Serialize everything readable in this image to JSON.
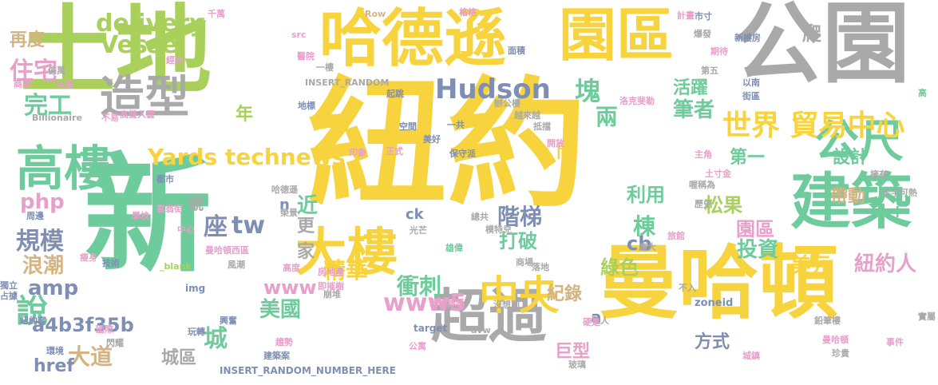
{
  "palette": [
    "#f7d33e",
    "#6ecb9c",
    "#a8d05a",
    "#a9a9a9",
    "#7f8fb3",
    "#d4b483",
    "#e7a0c9",
    "#f4a582"
  ],
  "words": [
    {
      "text": "紐約",
      "color": "#f7d33e"
    },
    {
      "text": "新",
      "color": "#6ecb9c"
    },
    {
      "text": "土地",
      "color": "#a8d05a"
    },
    {
      "text": "曼哈頓",
      "color": "#f7d33e"
    },
    {
      "text": "公園",
      "color": "#a9a9a9"
    },
    {
      "text": "哈德遜",
      "color": "#f7d33e"
    },
    {
      "text": "園區",
      "color": "#f7d33e"
    },
    {
      "text": "建築",
      "color": "#6ecb9c"
    },
    {
      "text": "超過",
      "color": "#a9a9a9"
    },
    {
      "text": "大樓",
      "color": "#f7d33e"
    },
    {
      "text": "高樓",
      "color": "#6ecb9c"
    },
    {
      "text": "造型",
      "color": "#a9a9a9"
    },
    {
      "text": "中央",
      "color": "#f7d33e"
    },
    {
      "text": "公尺",
      "color": "#6ecb9c"
    },
    {
      "text": "世界 貿易中心",
      "color": "#f7d33e"
    },
    {
      "text": "Hudson",
      "color": "#7f8fb3"
    },
    {
      "text": "Yards technews",
      "color": "#f7d33e"
    },
    {
      "text": "delivery",
      "color": "#a8d05a"
    },
    {
      "text": "Vessel",
      "color": "#a8d05a"
    },
    {
      "text": "完工",
      "color": "#6ecb9c"
    },
    {
      "text": "住宅",
      "color": "#e7a0c9"
    },
    {
      "text": "再度",
      "color": "#d4b483"
    },
    {
      "text": "php",
      "color": "#e7a0c9"
    },
    {
      "text": "規模",
      "color": "#7f8fb3"
    },
    {
      "text": "浪潮",
      "color": "#d4b483"
    },
    {
      "text": "amp",
      "color": "#7f8fb3"
    },
    {
      "text": "說",
      "color": "#6ecb9c"
    },
    {
      "text": "a4b3f35b",
      "color": "#7f8fb3"
    },
    {
      "text": "大道",
      "color": "#d4b483"
    },
    {
      "text": "href",
      "color": "#7f8fb3"
    },
    {
      "text": "城區",
      "color": "#a9a9a9"
    },
    {
      "text": "城",
      "color": "#6ecb9c"
    },
    {
      "text": "座",
      "color": "#7f8fb3"
    },
    {
      "text": "tw",
      "color": "#7f8fb3"
    },
    {
      "text": "www",
      "color": "#e7a0c9"
    },
    {
      "text": "www5",
      "color": "#e7a0c9"
    },
    {
      "text": "精華",
      "color": "#f7d33e"
    },
    {
      "text": "美國",
      "color": "#6ecb9c"
    },
    {
      "text": "衝刺",
      "color": "#6ecb9c"
    },
    {
      "text": "紀錄",
      "color": "#d4b483"
    },
    {
      "text": "巨型",
      "color": "#e7a0c9"
    },
    {
      "text": "階梯",
      "color": "#7f8fb3"
    },
    {
      "text": "打破",
      "color": "#6ecb9c"
    },
    {
      "text": "利用",
      "color": "#6ecb9c"
    },
    {
      "text": "棟",
      "color": "#6ecb9c"
    },
    {
      "text": "cb",
      "color": "#7f8fb3"
    },
    {
      "text": "綠色",
      "color": "#a8d05a"
    },
    {
      "text": "松果",
      "color": "#a8d05a"
    },
    {
      "text": "投資",
      "color": "#6ecb9c"
    },
    {
      "text": "園區",
      "color": "#e7a0c9"
    },
    {
      "text": "美元",
      "color": "#f7d33e"
    },
    {
      "text": "紐約人",
      "color": "#e7a0c9"
    },
    {
      "text": "設計",
      "color": "#6ecb9c"
    },
    {
      "text": "第一",
      "color": "#6ecb9c"
    },
    {
      "text": "帶動",
      "color": "#d4b483"
    },
    {
      "text": "筆者",
      "color": "#6ecb9c"
    },
    {
      "text": "活躍",
      "color": "#6ecb9c"
    },
    {
      "text": "塊",
      "color": "#6ecb9c"
    },
    {
      "text": "兩",
      "color": "#6ecb9c"
    },
    {
      "text": "間",
      "color": "#f7d33e"
    },
    {
      "text": "近",
      "color": "#6ecb9c"
    },
    {
      "text": "更",
      "color": "#a9a9a9"
    },
    {
      "text": "家",
      "color": "#a9a9a9"
    },
    {
      "text": "年",
      "color": "#a8d05a"
    },
    {
      "text": "ck",
      "color": "#7f8fb3"
    },
    {
      "text": "n",
      "color": "#7f8fb3"
    },
    {
      "text": "方式",
      "color": "#7f8fb3"
    },
    {
      "text": "爬",
      "color": "#a9a9a9"
    },
    {
      "text": "號",
      "color": "#a9a9a9"
    },
    {
      "text": "a",
      "color": "#7f8fb3"
    },
    {
      "text": "+",
      "color": "#6ecb9c"
    },
    {
      "text": "INSERT_RANDOM_NUMBER_HERE",
      "color": "#7f8fb3"
    },
    {
      "text": "INSERT_RANDOM",
      "color": "#a9a9a9"
    },
    {
      "text": "zoneid",
      "color": "#7f8fb3"
    },
    {
      "text": "Billionaire",
      "color": "#a9a9a9"
    },
    {
      "text": "Row",
      "color": "#d4b483"
    },
    {
      "text": "src",
      "color": "#e7a0c9"
    },
    {
      "text": "target",
      "color": "#7f8fb3"
    },
    {
      "text": "img",
      "color": "#7f8fb3"
    },
    {
      "text": "_blank",
      "color": "#a8d05a"
    },
    {
      "text": "avw",
      "color": "#a9a9a9"
    },
    {
      "text": "千萬",
      "color": "#e7a0c9"
    },
    {
      "text": "格格",
      "color": "#e7a0c9"
    },
    {
      "text": "市寸",
      "color": "#7f8fb3"
    },
    {
      "text": "爆發",
      "color": "#a9a9a9"
    },
    {
      "text": "期待",
      "color": "#e7a0c9"
    },
    {
      "text": "新樓房",
      "color": "#7f8fb3"
    },
    {
      "text": "面積",
      "color": "#7f8fb3"
    },
    {
      "text": "計畫",
      "color": "#e7a0c9"
    },
    {
      "text": "第五",
      "color": "#a9a9a9"
    },
    {
      "text": "以南",
      "color": "#7f8fb3"
    },
    {
      "text": "街區",
      "color": "#7f8fb3"
    },
    {
      "text": "高",
      "color": "#6ecb9c"
    },
    {
      "text": "商圈",
      "color": "#e7a0c9"
    },
    {
      "text": "億萬",
      "color": "#a9a9a9"
    },
    {
      "text": "大萬",
      "color": "#e7a0c9"
    },
    {
      "text": "高聳入雲",
      "color": "#e7a0c9"
    },
    {
      "text": "不易",
      "color": "#e7a0c9"
    },
    {
      "text": "經典",
      "color": "#e7a0c9"
    },
    {
      "text": "醫院",
      "color": "#e7a0c9"
    },
    {
      "text": "地標",
      "color": "#7f8fb3"
    },
    {
      "text": "起跳",
      "color": "#7f8fb3"
    },
    {
      "text": "一樓",
      "color": "#a9a9a9"
    },
    {
      "text": "辦公樓",
      "color": "#a9a9a9"
    },
    {
      "text": "越來越",
      "color": "#a9a9a9"
    },
    {
      "text": "抵擋",
      "color": "#a9a9a9"
    },
    {
      "text": "開放",
      "color": "#e7a0c9"
    },
    {
      "text": "空間",
      "color": "#7f8fb3"
    },
    {
      "text": "一共",
      "color": "#7f8fb3"
    },
    {
      "text": "美好",
      "color": "#7f8fb3"
    },
    {
      "text": "保守派",
      "color": "#7f8fb3"
    },
    {
      "text": "正式",
      "color": "#e7a0c9"
    },
    {
      "text": "印象",
      "color": "#e7a0c9"
    },
    {
      "text": "洛克斐勒",
      "color": "#e7a0c9"
    },
    {
      "text": "主角",
      "color": "#e7a0c9"
    },
    {
      "text": "土寸金",
      "color": "#e7a0c9"
    },
    {
      "text": "喔稱為",
      "color": "#a9a9a9"
    },
    {
      "text": "歷史",
      "color": "#a9a9a9"
    },
    {
      "text": "炙手可熱",
      "color": "#a9a9a9"
    },
    {
      "text": "擁有",
      "color": "#a9a9a9"
    },
    {
      "text": "都市",
      "color": "#7f8fb3"
    },
    {
      "text": "哈德遜",
      "color": "#a9a9a9"
    },
    {
      "text": "學校",
      "color": "#e7a0c9"
    },
    {
      "text": "中心",
      "color": "#e7a0c9"
    },
    {
      "text": "曼哈頓西區",
      "color": "#e7a0c9"
    },
    {
      "text": "榮景",
      "color": "#a9a9a9"
    },
    {
      "text": "光芒",
      "color": "#a9a9a9"
    },
    {
      "text": "總共",
      "color": "#a9a9a9"
    },
    {
      "text": "模特兒",
      "color": "#a9a9a9"
    },
    {
      "text": "雄偉",
      "color": "#6ecb9c"
    },
    {
      "text": "旅館",
      "color": "#e7a0c9"
    },
    {
      "text": "龐大",
      "color": "#a9a9a9"
    },
    {
      "text": "技術",
      "color": "#7f8fb3"
    },
    {
      "text": "瘦身",
      "color": "#e7a0c9"
    },
    {
      "text": "周邊",
      "color": "#7f8fb3"
    },
    {
      "text": "獨立",
      "color": "#7f8fb3"
    },
    {
      "text": "占據",
      "color": "#7f8fb3"
    },
    {
      "text": "紐約客",
      "color": "#7f8fb3"
    },
    {
      "text": "國際",
      "color": "#e7a0c9"
    },
    {
      "text": "環境",
      "color": "#7f8fb3"
    },
    {
      "text": "興奮",
      "color": "#7f8fb3"
    },
    {
      "text": "玩轉",
      "color": "#7f8fb3"
    },
    {
      "text": "風潮",
      "color": "#a9a9a9"
    },
    {
      "text": "高度",
      "color": "#e7a0c9"
    },
    {
      "text": "房地產",
      "color": "#e7a0c9"
    },
    {
      "text": "即摧樹",
      "color": "#e7a0c9"
    },
    {
      "text": "崩堆",
      "color": "#a9a9a9"
    },
    {
      "text": "藝術展區",
      "color": "#e7a0c9"
    },
    {
      "text": "趨勢",
      "color": "#e7a0c9"
    },
    {
      "text": "建築案",
      "color": "#7f8fb3"
    },
    {
      "text": "公寓",
      "color": "#e7a0c9"
    },
    {
      "text": "沒想到",
      "color": "#a9a9a9"
    },
    {
      "text": "商場",
      "color": "#a9a9a9"
    },
    {
      "text": "落地",
      "color": "#a9a9a9"
    },
    {
      "text": "玻璃",
      "color": "#a9a9a9"
    },
    {
      "text": "鉛筆樓",
      "color": "#a9a9a9"
    },
    {
      "text": "珍貴",
      "color": "#a9a9a9"
    },
    {
      "text": "城鎮",
      "color": "#e7a0c9"
    },
    {
      "text": "事件",
      "color": "#e7a0c9"
    },
    {
      "text": "實屬",
      "color": "#a9a9a9"
    },
    {
      "text": "不入",
      "color": "#a9a9a9"
    },
    {
      "text": "私人",
      "color": "#a9a9a9"
    },
    {
      "text": "硬是",
      "color": "#e7a0c9"
    },
    {
      "text": "曼哈頓",
      "color": "#e7a0c9"
    },
    {
      "text": "富翁街",
      "color": "#e7a0c9"
    },
    {
      "text": "閃耀",
      "color": "#a9a9a9"
    }
  ]
}
